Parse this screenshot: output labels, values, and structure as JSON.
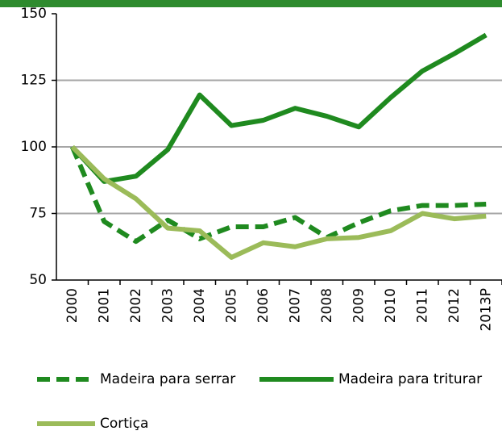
{
  "chart_data": {
    "type": "line",
    "categories": [
      "2000",
      "2001",
      "2002",
      "2003",
      "2004",
      "2005",
      "2006",
      "2007",
      "2008",
      "2009",
      "2010",
      "2011",
      "2012",
      "2013P"
    ],
    "series": [
      {
        "name": "Madeira para serrar",
        "color": "#1f8a1f",
        "dashed": true,
        "values": [
          100,
          72,
          64.5,
          72.5,
          65.5,
          70,
          70,
          73.5,
          66,
          71.5,
          76,
          78,
          78,
          78.5
        ]
      },
      {
        "name": "Madeira para triturar",
        "color": "#1f8a1f",
        "dashed": false,
        "values": [
          100,
          87,
          89,
          99,
          119.5,
          108,
          110,
          114.5,
          111.5,
          107.5,
          118.5,
          128.5,
          135,
          142
        ]
      },
      {
        "name": "Cortiça",
        "color": "#9bbb59",
        "dashed": false,
        "values": [
          100,
          88,
          80.5,
          69.5,
          68.5,
          58.5,
          64,
          62.5,
          65.5,
          66,
          68.5,
          75,
          73,
          74
        ]
      }
    ],
    "ylim": [
      50,
      150
    ],
    "yticks": [
      50,
      75,
      100,
      125,
      150
    ],
    "grid": true
  }
}
